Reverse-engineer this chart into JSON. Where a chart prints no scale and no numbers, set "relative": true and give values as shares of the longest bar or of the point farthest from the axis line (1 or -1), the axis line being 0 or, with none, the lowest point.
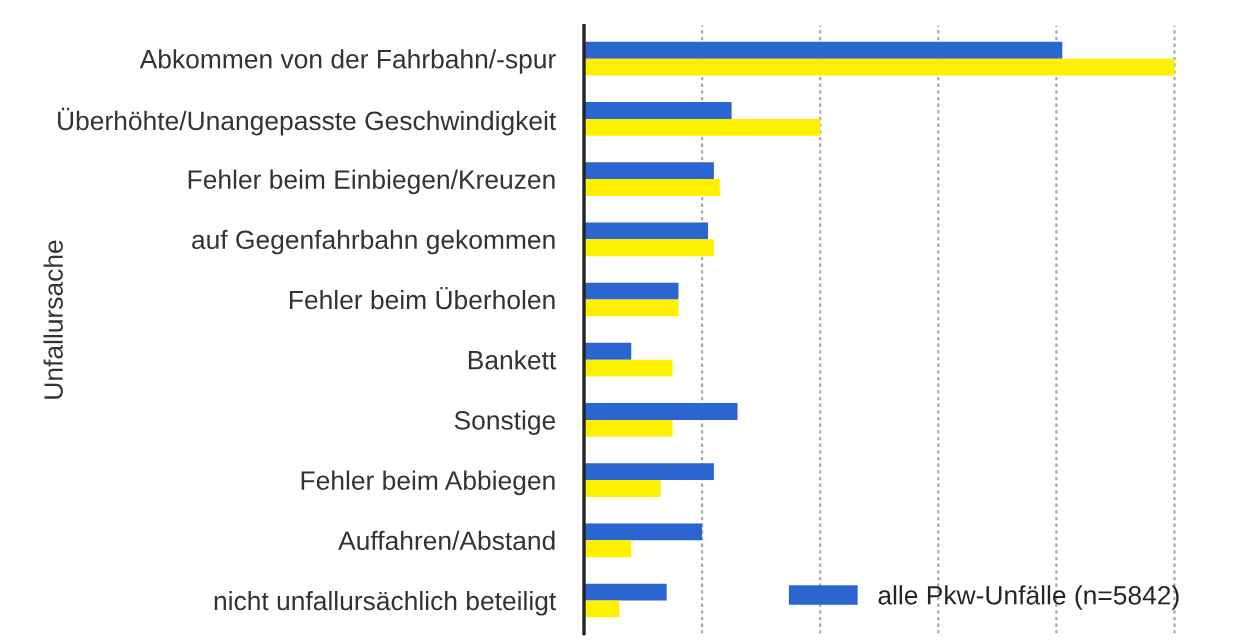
{
  "chart_data": {
    "type": "bar",
    "orientation": "horizontal",
    "relative": true,
    "ylabel": "Unfallursache",
    "categories": [
      "Abkommen von der Fahrbahn/-spur",
      "Überhöhte/Unangepasste Geschwindigkeit",
      "Fehler beim Einbiegen/Kreuzen",
      "auf Gegenfahrbahn gekommen",
      "Fehler beim Überholen",
      "Bankett",
      "Sonstige",
      "Fehler beim Abbiegen",
      "Auffahren/Abstand",
      "nicht unfallursächlich beteiligt"
    ],
    "series": [
      {
        "name": "alle Pkw-Unfälle (n=5842)",
        "color": "#2a65d0",
        "values": [
          0.81,
          0.25,
          0.22,
          0.21,
          0.16,
          0.08,
          0.26,
          0.22,
          0.2,
          0.14
        ]
      },
      {
        "color": "#fff000",
        "values": [
          1,
          0.4,
          0.23,
          0.22,
          0.16,
          0.15,
          0.15,
          0.13,
          0.08,
          0.06
        ]
      }
    ],
    "grid": "x",
    "legend": "bottom right"
  }
}
